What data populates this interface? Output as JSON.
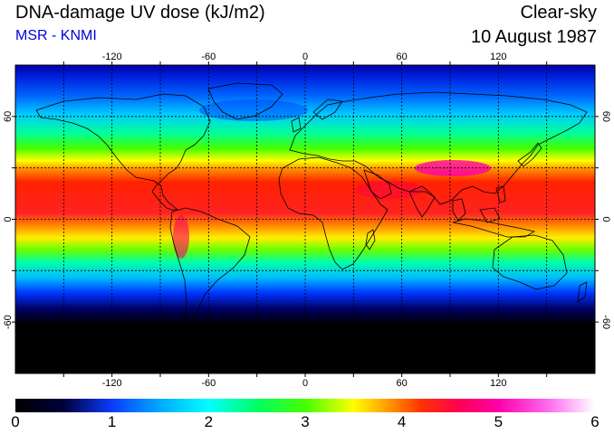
{
  "header": {
    "title": "DNA-damage UV dose (kJ/m2)",
    "subtitle": "MSR - KNMI",
    "condition": "Clear-sky",
    "date": "10 August 1987"
  },
  "map": {
    "projection": "equirectangular",
    "lon_range": [
      -180,
      180
    ],
    "lat_range": [
      -90,
      90
    ],
    "grid_lon": [
      -150,
      -120,
      -90,
      -60,
      -30,
      0,
      30,
      60,
      90,
      120,
      150
    ],
    "grid_lat": [
      -60,
      -30,
      0,
      30,
      60
    ],
    "lon_tick_labels": [
      {
        "value": -120,
        "label": "-120"
      },
      {
        "value": -60,
        "label": "-60"
      },
      {
        "value": 0,
        "label": "0"
      },
      {
        "value": 60,
        "label": "60"
      },
      {
        "value": 120,
        "label": "120"
      }
    ],
    "lat_tick_labels": [
      {
        "value": 60,
        "label": "60"
      },
      {
        "value": 0,
        "label": "0"
      },
      {
        "value": -60,
        "label": "-60"
      }
    ],
    "colors": {
      "background": "#ffffff",
      "coastline": "#000000",
      "grid": "#000000"
    }
  },
  "colorbar": {
    "min": 0,
    "max": 6,
    "ticks": [
      "0",
      "1",
      "2",
      "3",
      "4",
      "5",
      "6"
    ],
    "stops": [
      {
        "value": 0.0,
        "color": "#000000"
      },
      {
        "value": 0.5,
        "color": "#00003a"
      },
      {
        "value": 1.0,
        "color": "#0a3cff"
      },
      {
        "value": 1.5,
        "color": "#00aaff"
      },
      {
        "value": 2.0,
        "color": "#00ffff"
      },
      {
        "value": 2.5,
        "color": "#00ff66"
      },
      {
        "value": 3.0,
        "color": "#44ff00"
      },
      {
        "value": 3.5,
        "color": "#ffff00"
      },
      {
        "value": 3.8,
        "color": "#ffaa00"
      },
      {
        "value": 4.2,
        "color": "#ff3300"
      },
      {
        "value": 4.6,
        "color": "#ff0055"
      },
      {
        "value": 5.0,
        "color": "#ff00aa"
      },
      {
        "value": 5.5,
        "color": "#ff66ee"
      },
      {
        "value": 6.0,
        "color": "#ffffff"
      }
    ]
  }
}
